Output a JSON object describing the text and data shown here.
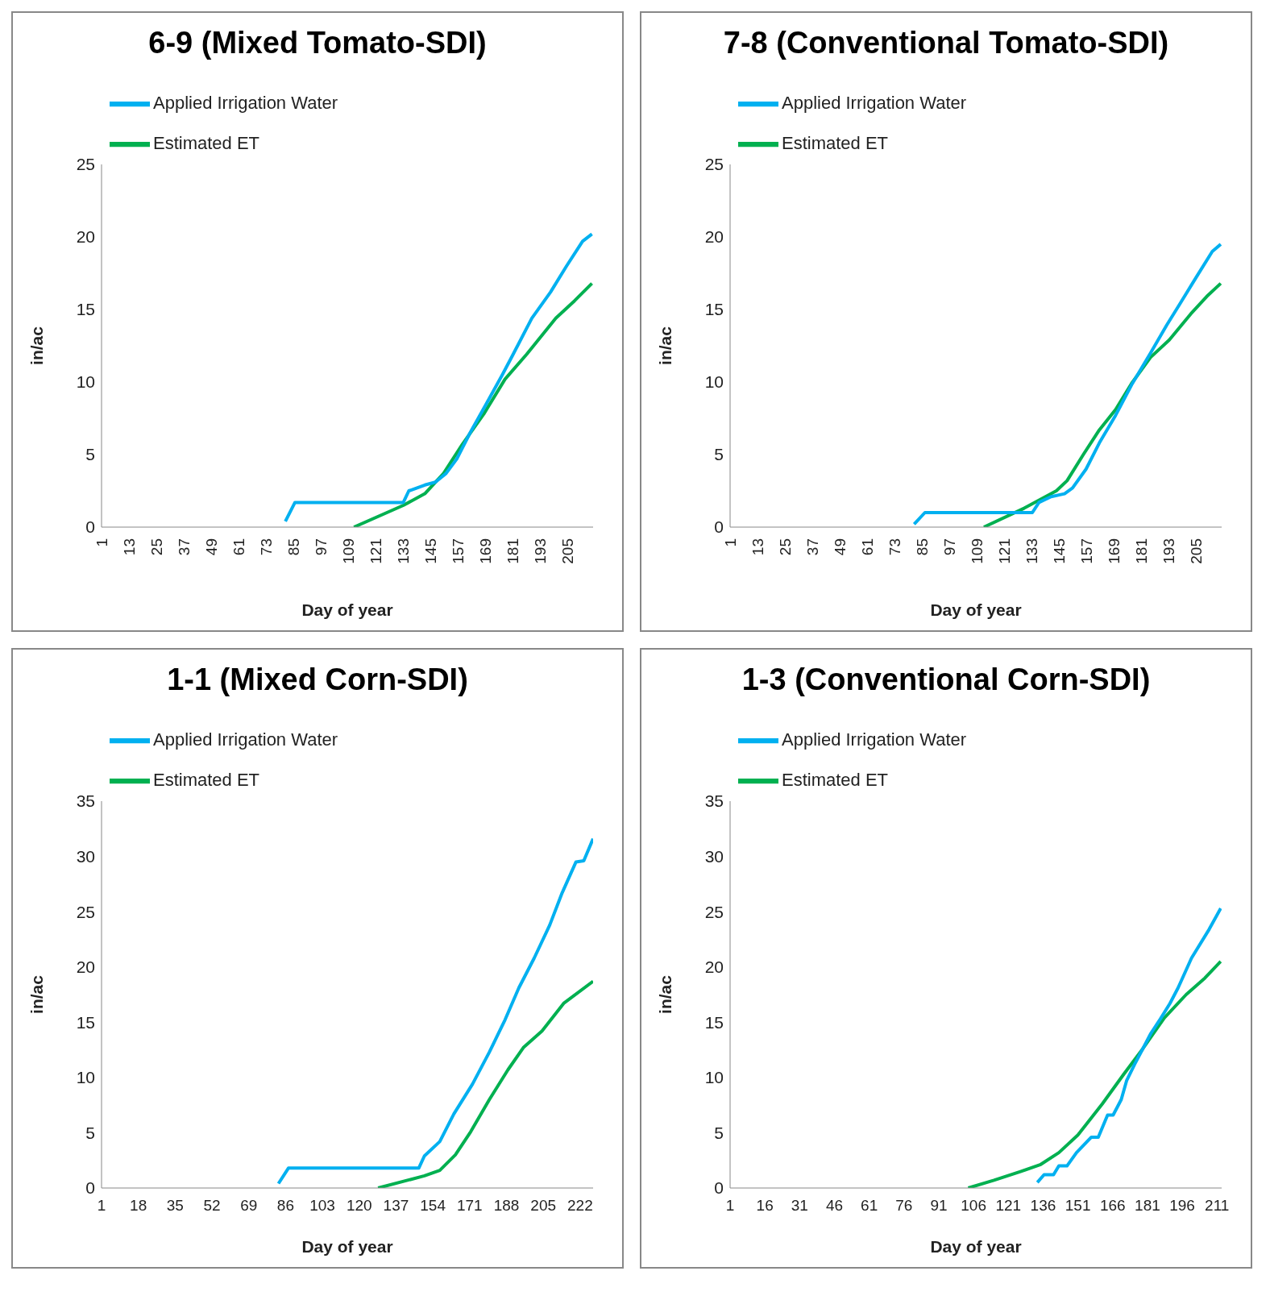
{
  "chart_data": [
    {
      "type": "line",
      "title": "6-9 (Mixed Tomato-SDI)",
      "xlabel": "Day of year",
      "ylabel": "in/ac",
      "legend": "top left",
      "xlim": [
        1,
        216
      ],
      "xticks": [
        1,
        13,
        25,
        37,
        49,
        61,
        73,
        85,
        97,
        109,
        121,
        133,
        145,
        157,
        169,
        181,
        193,
        205
      ],
      "ylim": [
        0,
        25
      ],
      "yticks": [
        0,
        5,
        10,
        15,
        20,
        25
      ],
      "series": [
        {
          "name": "Estimated ET",
          "color": "#00b050",
          "x": [
            111.4,
            133,
            142.4,
            150.6,
            158.8,
            168.2,
            177.5,
            186.9,
            199.7,
            207.9,
            215.5
          ],
          "values": [
            0,
            1.5,
            2.3,
            3.7,
            5.7,
            7.8,
            10.2,
            11.9,
            14.4,
            15.6,
            16.8
          ]
        },
        {
          "name": "Applied Irrigation Water",
          "color": "#00b0f0",
          "x": [
            81.4,
            85.6,
            133,
            135.4,
            142.4,
            147,
            151.7,
            156.4,
            162.2,
            169.3,
            176.3,
            181,
            189.2,
            197.4,
            204.4,
            211.4,
            215.5
          ],
          "values": [
            0.4,
            1.7,
            1.7,
            2.5,
            2.9,
            3.1,
            3.7,
            4.7,
            6.5,
            8.5,
            10.5,
            11.9,
            14.4,
            16.2,
            18,
            19.7,
            20.2
          ]
        }
      ]
    },
    {
      "type": "line",
      "title": "7-8 (Conventional Tomato-SDI)",
      "xlabel": "Day of year",
      "ylabel": "in/ac",
      "legend": "top left",
      "xlim": [
        1,
        216
      ],
      "xticks": [
        1,
        13,
        25,
        37,
        49,
        61,
        73,
        85,
        97,
        109,
        121,
        133,
        145,
        157,
        169,
        181,
        193,
        205
      ],
      "ylim": [
        0,
        25
      ],
      "yticks": [
        0,
        5,
        10,
        15,
        20,
        25
      ],
      "series": [
        {
          "name": "Estimated ET",
          "color": "#00b050",
          "x": [
            112,
            129.6,
            143.7,
            148.4,
            155.5,
            162.5,
            169.6,
            176.6,
            184.9,
            193.1,
            202.5,
            209.5,
            215.6
          ],
          "values": [
            0,
            1.3,
            2.5,
            3.2,
            5,
            6.7,
            8.1,
            9.9,
            11.7,
            12.9,
            14.7,
            15.9,
            16.8
          ]
        },
        {
          "name": "Applied Irrigation Water",
          "color": "#00b0f0",
          "x": [
            81.5,
            86.2,
            133.2,
            136.1,
            141.4,
            147.3,
            150.8,
            156.7,
            162.5,
            169.6,
            176.6,
            184.9,
            191.9,
            197.8,
            204.8,
            211.9,
            215.6
          ],
          "values": [
            0.2,
            1,
            1,
            1.7,
            2.1,
            2.3,
            2.7,
            4,
            5.8,
            7.7,
            9.8,
            12,
            13.9,
            15.4,
            17.2,
            19,
            19.5
          ]
        }
      ]
    },
    {
      "type": "line",
      "title": "1-1 (Mixed Corn-SDI)",
      "xlabel": "Day of year",
      "ylabel": "in/ac",
      "legend": "top left",
      "xlim": [
        1,
        228
      ],
      "xticks": [
        1,
        18,
        35,
        52,
        69,
        86,
        103,
        120,
        137,
        154,
        171,
        188,
        205,
        222
      ],
      "ylim": [
        0,
        35
      ],
      "yticks": [
        0,
        5,
        10,
        15,
        20,
        25,
        30,
        35
      ],
      "series": [
        {
          "name": "Estimated ET",
          "color": "#00b050",
          "x": [
            128.7,
            150.1,
            157.2,
            164.4,
            171.5,
            180.1,
            188.7,
            195.8,
            204.4,
            214.4,
            228
          ],
          "values": [
            0,
            1.1,
            1.6,
            3,
            5.1,
            8,
            10.7,
            12.7,
            14.2,
            16.7,
            18.7
          ]
        },
        {
          "name": "Applied Irrigation Water",
          "color": "#00b0f0",
          "x": [
            82.7,
            87.3,
            147.5,
            150.1,
            157.2,
            163.7,
            172.3,
            180.1,
            187.3,
            193.7,
            200.8,
            208,
            213.7,
            220.1,
            223.7,
            228
          ],
          "values": [
            0.4,
            1.8,
            1.8,
            2.9,
            4.2,
            6.7,
            9.4,
            12.3,
            15.2,
            18.1,
            20.8,
            23.8,
            26.7,
            29.5,
            29.6,
            31.6
          ]
        }
      ]
    },
    {
      "type": "line",
      "title": "1-3 (Conventional Corn-SDI)",
      "xlabel": "Day of year",
      "ylabel": "in/ac",
      "legend": "top left",
      "xlim": [
        1,
        213
      ],
      "xticks": [
        1,
        16,
        31,
        46,
        61,
        76,
        91,
        106,
        121,
        136,
        151,
        166,
        181,
        196,
        211
      ],
      "ylim": [
        0,
        35
      ],
      "yticks": [
        0,
        5,
        10,
        15,
        20,
        25,
        30,
        35
      ],
      "series": [
        {
          "name": "Estimated ET",
          "color": "#00b050",
          "x": [
            103.7,
            114.8,
            126.5,
            134.7,
            142.8,
            151,
            161.5,
            170.8,
            179,
            188.3,
            197.7,
            205.8,
            212.6
          ],
          "values": [
            0,
            0.7,
            1.5,
            2.1,
            3.2,
            4.8,
            7.6,
            10.3,
            12.6,
            15.4,
            17.5,
            19,
            20.5
          ]
        },
        {
          "name": "Applied Irrigation Water",
          "color": "#00b0f0",
          "x": [
            133.5,
            136.4,
            140.5,
            142.8,
            146.3,
            150.4,
            156.8,
            159.8,
            163.8,
            166.2,
            169.7,
            172,
            175.5,
            179,
            182.5,
            186.6,
            190.7,
            194.2,
            200,
            207.6,
            212.6
          ],
          "values": [
            0.5,
            1.2,
            1.2,
            2,
            2,
            3.2,
            4.6,
            4.6,
            6.6,
            6.6,
            8,
            9.7,
            11.2,
            12.6,
            14,
            15.3,
            16.7,
            18.1,
            20.8,
            23.4,
            25.3
          ]
        }
      ]
    }
  ]
}
